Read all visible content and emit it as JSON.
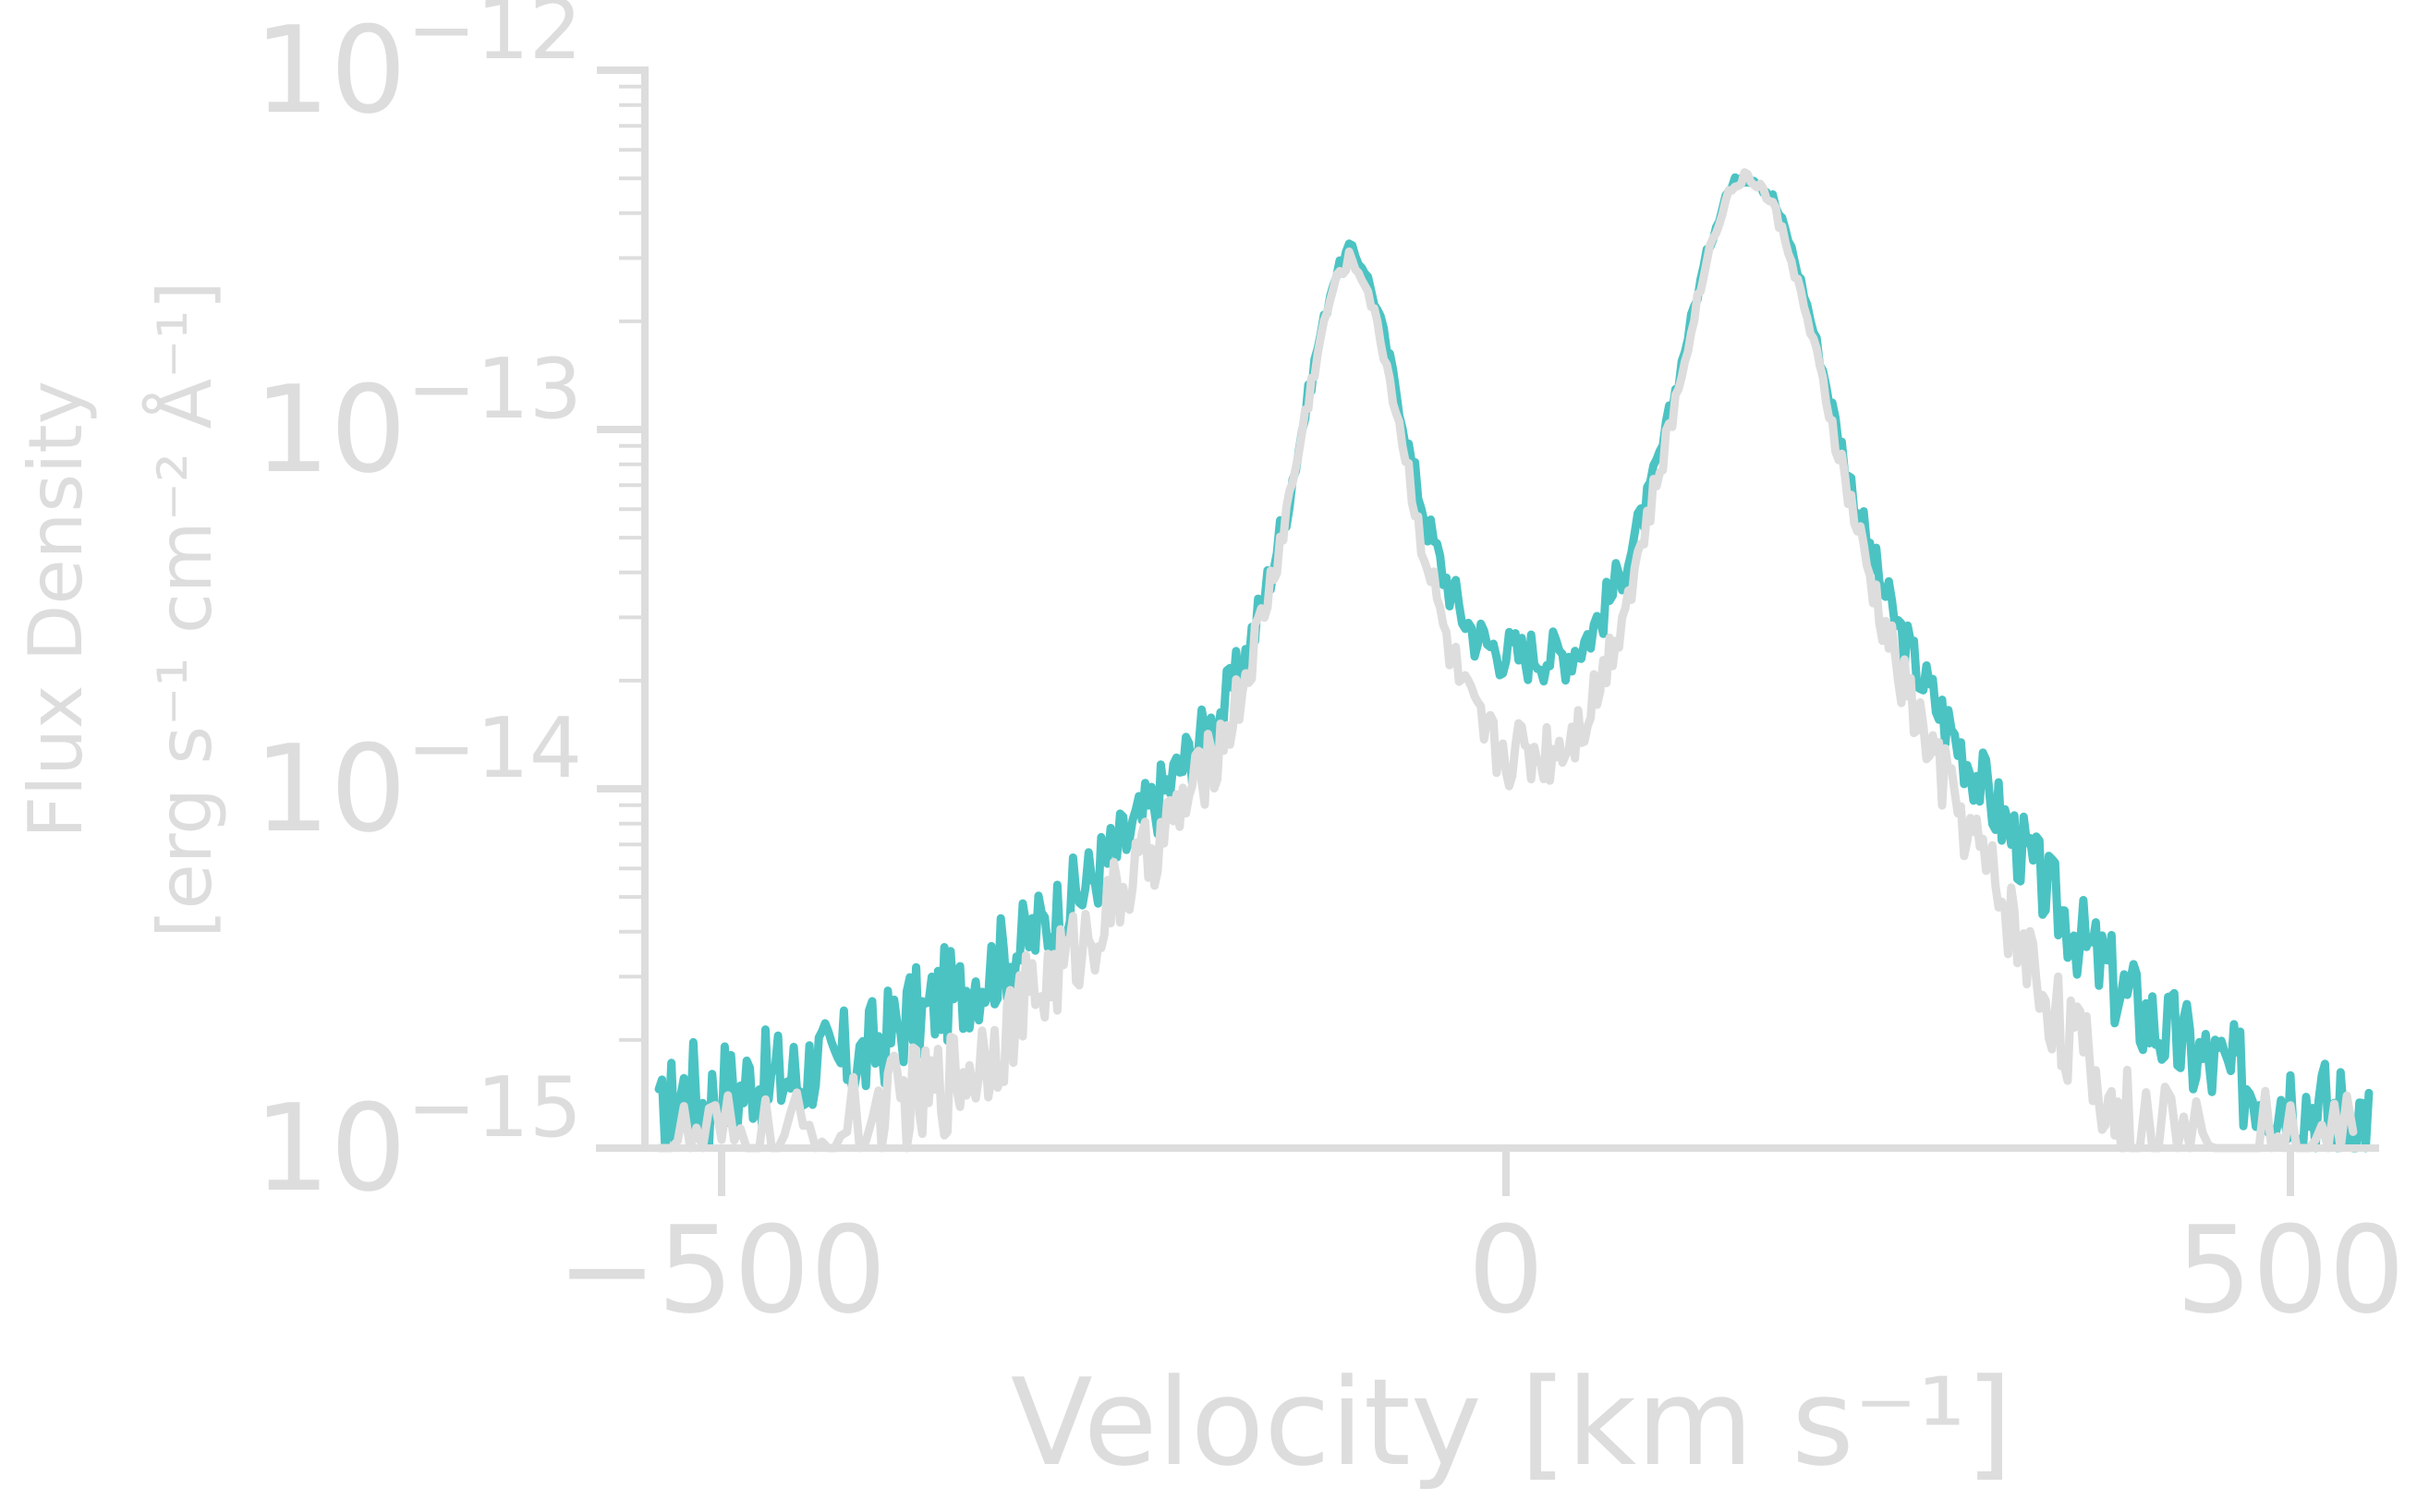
{
  "chart_data": {
    "type": "line",
    "title": "",
    "xlabel": "Velocity [km s⁻¹]",
    "ylabel_line1": "Flux Density",
    "ylabel_line2": "[erg s⁻¹ cm⁻² Å⁻¹]",
    "xlim": [
      -550,
      550
    ],
    "ylim": [
      1e-15,
      1e-12
    ],
    "yscale": "log",
    "grid": false,
    "legend": "none",
    "x_ticks": [
      {
        "value": -500,
        "label": "−500"
      },
      {
        "value": 0,
        "label": "0"
      },
      {
        "value": 500,
        "label": "500"
      }
    ],
    "y_ticks": [
      {
        "value": 1e-15,
        "base": "10",
        "exp": "−15"
      },
      {
        "value": 1e-14,
        "base": "10",
        "exp": "−14"
      },
      {
        "value": 1e-13,
        "base": "10",
        "exp": "−13"
      },
      {
        "value": 1e-12,
        "base": "10",
        "exp": "−12"
      }
    ],
    "series": [
      {
        "color": "#4bc3c3",
        "points": [
          [
            -540,
            1.1e-15
          ],
          [
            -530,
            1.35e-15
          ],
          [
            -520,
            1.5e-15
          ],
          [
            -510,
            1.3e-15
          ],
          [
            -500,
            1.5e-15
          ],
          [
            -490,
            1.4e-15
          ],
          [
            -480,
            1.6e-15
          ],
          [
            -470,
            1.5e-15
          ],
          [
            -460,
            1.6e-15
          ],
          [
            -450,
            1.55e-15
          ],
          [
            -440,
            1.8e-15
          ],
          [
            -430,
            1.6e-15
          ],
          [
            -420,
            1.8e-15
          ],
          [
            -410,
            1.75e-15
          ],
          [
            -400,
            2e-15
          ],
          [
            -390,
            2.1e-15
          ],
          [
            -380,
            2.4e-15
          ],
          [
            -370,
            2.3e-15
          ],
          [
            -360,
            2.7e-15
          ],
          [
            -350,
            2.6e-15
          ],
          [
            -340,
            3e-15
          ],
          [
            -330,
            3.1e-15
          ],
          [
            -320,
            3.4e-15
          ],
          [
            -310,
            3.6e-15
          ],
          [
            -300,
            4e-15
          ],
          [
            -290,
            4.3e-15
          ],
          [
            -280,
            4.8e-15
          ],
          [
            -270,
            5.2e-15
          ],
          [
            -260,
            6e-15
          ],
          [
            -250,
            6.6e-15
          ],
          [
            -240,
            7.4e-15
          ],
          [
            -230,
            8.4e-15
          ],
          [
            -220,
            9.6e-15
          ],
          [
            -210,
            1.1e-14
          ],
          [
            -200,
            1.28e-14
          ],
          [
            -190,
            1.45e-14
          ],
          [
            -180,
            1.7e-14
          ],
          [
            -170,
            2.1e-14
          ],
          [
            -160,
            2.8e-14
          ],
          [
            -150,
            4e-14
          ],
          [
            -140,
            6e-14
          ],
          [
            -130,
            1e-13
          ],
          [
            -120,
            1.7e-13
          ],
          [
            -110,
            2.6e-13
          ],
          [
            -100,
            3.2e-13
          ],
          [
            -90,
            2.8e-13
          ],
          [
            -80,
            2e-13
          ],
          [
            -70,
            1.3e-13
          ],
          [
            -60,
            8e-14
          ],
          [
            -50,
            5.4e-14
          ],
          [
            -40,
            4e-14
          ],
          [
            -30,
            3.2e-14
          ],
          [
            -20,
            2.7e-14
          ],
          [
            -10,
            2.5e-14
          ],
          [
            0,
            2.4e-14
          ],
          [
            10,
            2.35e-14
          ],
          [
            20,
            2.4e-14
          ],
          [
            30,
            2.35e-14
          ],
          [
            40,
            2.4e-14
          ],
          [
            50,
            2.6e-14
          ],
          [
            60,
            3e-14
          ],
          [
            70,
            3.7e-14
          ],
          [
            80,
            4.7e-14
          ],
          [
            90,
            6.2e-14
          ],
          [
            100,
            9e-14
          ],
          [
            110,
            1.4e-13
          ],
          [
            120,
            2.2e-13
          ],
          [
            130,
            3.3e-13
          ],
          [
            140,
            4.5e-13
          ],
          [
            150,
            5.1e-13
          ],
          [
            160,
            5e-13
          ],
          [
            170,
            4.4e-13
          ],
          [
            180,
            3.4e-13
          ],
          [
            190,
            2.4e-13
          ],
          [
            200,
            1.6e-13
          ],
          [
            210,
            1.05e-13
          ],
          [
            220,
            7e-14
          ],
          [
            230,
            4.9e-14
          ],
          [
            240,
            3.6e-14
          ],
          [
            250,
            2.8e-14
          ],
          [
            260,
            2.25e-14
          ],
          [
            270,
            1.85e-14
          ],
          [
            280,
            1.55e-14
          ],
          [
            290,
            1.3e-14
          ],
          [
            300,
            1.1e-14
          ],
          [
            310,
            9.2e-15
          ],
          [
            320,
            7.8e-15
          ],
          [
            330,
            6.6e-15
          ],
          [
            340,
            5.6e-15
          ],
          [
            350,
            4.8e-15
          ],
          [
            360,
            4.2e-15
          ],
          [
            370,
            3.6e-15
          ],
          [
            380,
            3.2e-15
          ],
          [
            390,
            2.8e-15
          ],
          [
            400,
            2.5e-15
          ],
          [
            410,
            2.3e-15
          ],
          [
            420,
            2.1e-15
          ],
          [
            430,
            1.95e-15
          ],
          [
            440,
            1.8e-15
          ],
          [
            450,
            1.7e-15
          ],
          [
            460,
            1.6e-15
          ],
          [
            470,
            1.55e-15
          ],
          [
            480,
            1.5e-15
          ],
          [
            490,
            1.4e-15
          ],
          [
            500,
            1.45e-15
          ],
          [
            510,
            1.35e-15
          ],
          [
            520,
            1.3e-15
          ],
          [
            530,
            1.25e-15
          ],
          [
            540,
            1.3e-15
          ],
          [
            550,
            1.2e-15
          ]
        ]
      },
      {
        "color": "#dddddd",
        "points": [
          [
            -540,
            1e-15
          ],
          [
            -520,
            1e-15
          ],
          [
            -500,
            1e-15
          ],
          [
            -480,
            1e-15
          ],
          [
            -460,
            1e-15
          ],
          [
            -440,
            1.05e-15
          ],
          [
            -420,
            1.1e-15
          ],
          [
            -400,
            1.2e-15
          ],
          [
            -390,
            1.3e-15
          ],
          [
            -380,
            1.4e-15
          ],
          [
            -370,
            1.35e-15
          ],
          [
            -360,
            1.5e-15
          ],
          [
            -350,
            1.6e-15
          ],
          [
            -340,
            1.7e-15
          ],
          [
            -330,
            1.9e-15
          ],
          [
            -320,
            2.1e-15
          ],
          [
            -310,
            2.4e-15
          ],
          [
            -300,
            2.7e-15
          ],
          [
            -290,
            3e-15
          ],
          [
            -280,
            3.3e-15
          ],
          [
            -270,
            3.7e-15
          ],
          [
            -260,
            4.2e-15
          ],
          [
            -250,
            4.8e-15
          ],
          [
            -240,
            5.5e-15
          ],
          [
            -230,
            6.3e-15
          ],
          [
            -220,
            7.3e-15
          ],
          [
            -210,
            8.5e-15
          ],
          [
            -200,
            9.8e-15
          ],
          [
            -190,
            1.15e-14
          ],
          [
            -180,
            1.4e-14
          ],
          [
            -170,
            1.8e-14
          ],
          [
            -160,
            2.5e-14
          ],
          [
            -150,
            3.7e-14
          ],
          [
            -140,
            5.8e-14
          ],
          [
            -130,
            9.8e-14
          ],
          [
            -120,
            1.65e-13
          ],
          [
            -110,
            2.5e-13
          ],
          [
            -100,
            3e-13
          ],
          [
            -90,
            2.6e-13
          ],
          [
            -80,
            1.8e-13
          ],
          [
            -70,
            1.15e-13
          ],
          [
            -60,
            6.8e-14
          ],
          [
            -50,
            4.2e-14
          ],
          [
            -40,
            2.8e-14
          ],
          [
            -30,
            2e-14
          ],
          [
            -20,
            1.55e-14
          ],
          [
            -10,
            1.35e-14
          ],
          [
            0,
            1.25e-14
          ],
          [
            10,
            1.3e-14
          ],
          [
            20,
            1.25e-14
          ],
          [
            30,
            1.3e-14
          ],
          [
            40,
            1.4e-14
          ],
          [
            50,
            1.6e-14
          ],
          [
            60,
            2e-14
          ],
          [
            70,
            2.7e-14
          ],
          [
            80,
            3.8e-14
          ],
          [
            90,
            5.5e-14
          ],
          [
            100,
            8.3e-14
          ],
          [
            110,
            1.3e-13
          ],
          [
            120,
            2.1e-13
          ],
          [
            130,
            3.2e-13
          ],
          [
            140,
            4.4e-13
          ],
          [
            150,
            5e-13
          ],
          [
            160,
            4.9e-13
          ],
          [
            170,
            4.2e-13
          ],
          [
            180,
            3.2e-13
          ],
          [
            190,
            2.2e-13
          ],
          [
            200,
            1.45e-13
          ],
          [
            210,
            9.4e-14
          ],
          [
            220,
            6.1e-14
          ],
          [
            230,
            4.1e-14
          ],
          [
            240,
            2.9e-14
          ],
          [
            250,
            2.15e-14
          ],
          [
            260,
            1.65e-14
          ],
          [
            270,
            1.3e-14
          ],
          [
            280,
            1.05e-14
          ],
          [
            290,
            8.5e-15
          ],
          [
            300,
            6.9e-15
          ],
          [
            310,
            5.6e-15
          ],
          [
            320,
            4.5e-15
          ],
          [
            330,
            3.6e-15
          ],
          [
            340,
            2.9e-15
          ],
          [
            350,
            2.4e-15
          ],
          [
            360,
            2e-15
          ],
          [
            370,
            1.7e-15
          ],
          [
            380,
            1.45e-15
          ],
          [
            390,
            1.25e-15
          ],
          [
            400,
            1.1e-15
          ],
          [
            420,
            1.05e-15
          ],
          [
            440,
            1e-15
          ],
          [
            460,
            1e-15
          ],
          [
            480,
            1e-15
          ],
          [
            500,
            1e-15
          ],
          [
            520,
            1e-15
          ],
          [
            540,
            1e-15
          ]
        ]
      }
    ]
  }
}
